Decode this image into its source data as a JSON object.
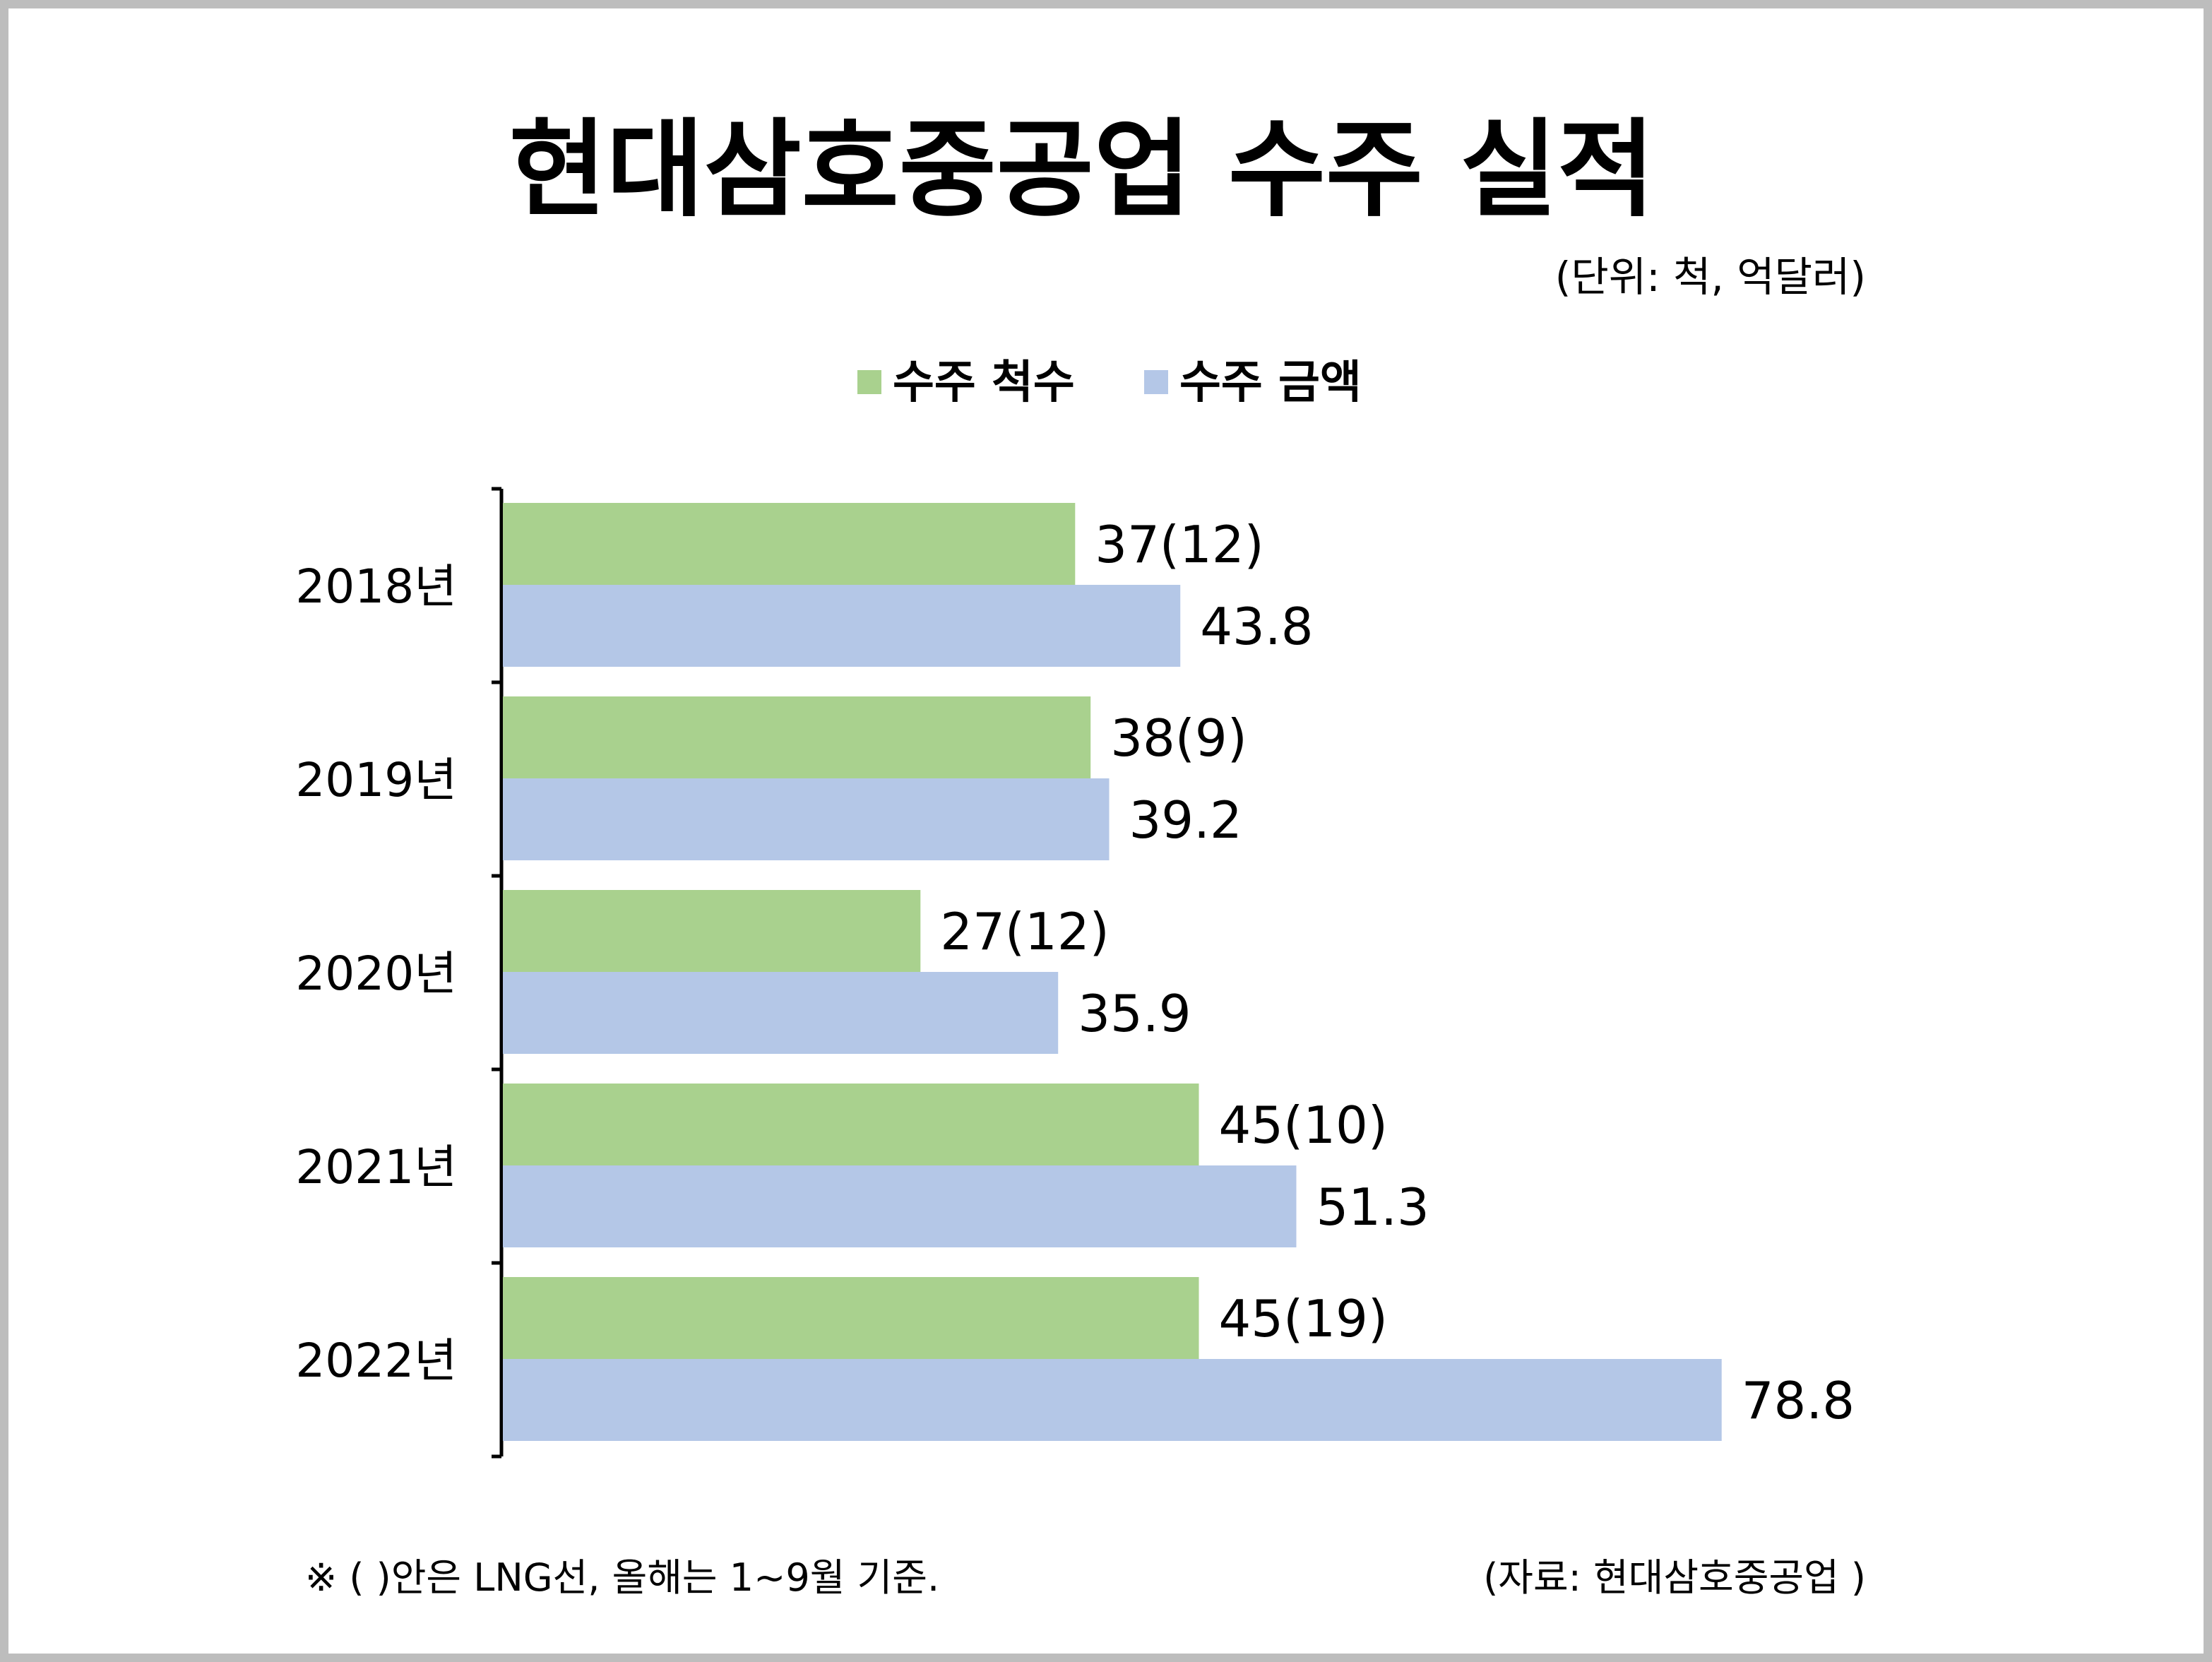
{
  "title": "현대삼호중공업 수주 실적",
  "unit_note": "(단위: 척, 억달러)",
  "footnote": "※ ( )안은 LNG선, 올해는 1~9월 기준.",
  "source": "(자료: 현대삼호중공업 )",
  "colors": {
    "ships": "#a9d18e",
    "amount": "#b4c7e7",
    "axis": "#000000"
  },
  "chart_data": {
    "type": "bar",
    "orientation": "horizontal",
    "title": "현대삼호중공업 수주 실적",
    "categories": [
      "2018년",
      "2019년",
      "2020년",
      "2021년",
      "2022년"
    ],
    "series": [
      {
        "name": "수주 척수",
        "values": [
          37,
          38,
          27,
          45,
          45
        ],
        "labels": [
          "37(12)",
          "38(9)",
          "27(12)",
          "45(10)",
          "45(19)"
        ]
      },
      {
        "name": "수주 금액",
        "values": [
          43.8,
          39.2,
          35.9,
          51.3,
          78.8
        ],
        "labels": [
          "43.8",
          "39.2",
          "35.9",
          "51.3",
          "78.8"
        ]
      }
    ],
    "xlim": [
      0,
      86
    ],
    "legend": "top",
    "grid": false
  }
}
